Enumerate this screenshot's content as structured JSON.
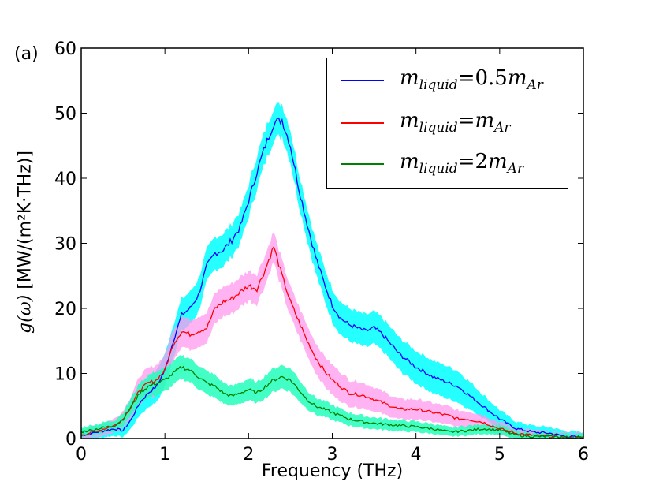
{
  "panel_label": "(a)",
  "legend": {
    "entries": [
      {
        "prefix": "m",
        "sub": "liquid",
        "eq": "=0.5",
        "post": "m",
        "post_sub": "Ar"
      },
      {
        "prefix": "m",
        "sub": "liquid",
        "eq": "=",
        "post": "m",
        "post_sub": "Ar"
      },
      {
        "prefix": "m",
        "sub": "liquid",
        "eq": "=2",
        "post": "m",
        "post_sub": "Ar"
      }
    ]
  },
  "chart_data": {
    "type": "line",
    "title": "",
    "xlabel": "Frequency (THz)",
    "ylabel_math": "g(ω)",
    "ylabel_units": "[MW/(m²K·THz)]",
    "xlim": [
      0,
      6
    ],
    "ylim": [
      0,
      60
    ],
    "x_ticks": [
      0,
      1,
      2,
      3,
      4,
      5,
      6
    ],
    "y_ticks": [
      0,
      10,
      20,
      30,
      40,
      50,
      60
    ],
    "legend_position": "top-right",
    "grid": false,
    "series": [
      {
        "name": "m_liquid=0.5m_Ar",
        "color": "#0000ff",
        "band_color": "#00ffff",
        "band_halfwidth": 2.5,
        "x": [
          0,
          0.2,
          0.4,
          0.5,
          0.6,
          0.7,
          0.8,
          0.9,
          1.0,
          1.1,
          1.2,
          1.3,
          1.4,
          1.5,
          1.6,
          1.7,
          1.8,
          1.9,
          2.0,
          2.1,
          2.2,
          2.3,
          2.4,
          2.5,
          2.6,
          2.7,
          2.8,
          2.9,
          3.0,
          3.1,
          3.2,
          3.3,
          3.4,
          3.5,
          3.6,
          3.7,
          3.8,
          3.9,
          4.0,
          4.2,
          4.4,
          4.5,
          4.6,
          4.8,
          5.0,
          5.2,
          5.4,
          5.6,
          5.8,
          6.0
        ],
        "values": [
          0.5,
          1.0,
          1.5,
          1.2,
          3.0,
          5.5,
          7.0,
          8.0,
          10.5,
          15.0,
          19.0,
          20.0,
          22.0,
          26.5,
          28.5,
          29.0,
          30.5,
          32.5,
          36.5,
          41.0,
          45.0,
          48.5,
          49.0,
          45.0,
          38.5,
          33.0,
          28.0,
          24.0,
          20.5,
          18.5,
          17.5,
          17.0,
          16.5,
          17.0,
          16.0,
          14.5,
          13.0,
          12.0,
          11.0,
          9.5,
          8.5,
          8.0,
          7.0,
          5.0,
          3.0,
          1.5,
          1.0,
          0.8,
          0.3,
          0.2
        ]
      },
      {
        "name": "m_liquid=m_Ar",
        "color": "#ff0000",
        "band_color": "#ff99ee",
        "band_halfwidth": 2.3,
        "x": [
          0,
          0.2,
          0.4,
          0.5,
          0.6,
          0.7,
          0.8,
          0.9,
          1.0,
          1.1,
          1.2,
          1.3,
          1.4,
          1.5,
          1.6,
          1.7,
          1.8,
          1.9,
          2.0,
          2.1,
          2.2,
          2.3,
          2.4,
          2.5,
          2.6,
          2.7,
          2.8,
          2.9,
          3.0,
          3.1,
          3.2,
          3.3,
          3.4,
          3.5,
          3.6,
          3.8,
          4.0,
          4.2,
          4.4,
          4.5,
          4.6,
          4.8,
          5.0,
          5.2,
          5.4,
          5.6,
          5.8,
          6.0
        ],
        "values": [
          0.5,
          1.2,
          2.0,
          3.0,
          5.0,
          7.5,
          8.5,
          9.0,
          10.5,
          14.5,
          16.5,
          16.0,
          16.5,
          17.0,
          20.0,
          21.0,
          21.5,
          22.5,
          23.5,
          23.0,
          26.0,
          29.5,
          25.0,
          21.0,
          18.0,
          15.0,
          12.5,
          10.5,
          9.0,
          8.0,
          7.0,
          6.8,
          6.5,
          6.0,
          5.5,
          4.5,
          4.5,
          4.0,
          3.5,
          3.0,
          3.0,
          2.5,
          1.5,
          0.8,
          0.5,
          0.3,
          0.2,
          0.1
        ]
      },
      {
        "name": "m_liquid=2m_Ar",
        "color": "#008000",
        "band_color": "#22ffbb",
        "band_halfwidth": 1.8,
        "x": [
          0,
          0.2,
          0.4,
          0.5,
          0.6,
          0.7,
          0.8,
          0.9,
          1.0,
          1.1,
          1.2,
          1.3,
          1.4,
          1.5,
          1.6,
          1.7,
          1.8,
          1.9,
          2.0,
          2.1,
          2.2,
          2.3,
          2.4,
          2.5,
          2.6,
          2.7,
          2.8,
          2.9,
          3.0,
          3.2,
          3.4,
          3.6,
          3.8,
          4.0,
          4.2,
          4.4,
          4.6,
          4.8,
          5.0,
          5.2,
          5.4,
          5.6,
          5.8,
          6.0
        ],
        "values": [
          1.0,
          1.5,
          2.0,
          3.0,
          5.0,
          7.0,
          8.0,
          8.5,
          9.0,
          10.0,
          11.0,
          10.5,
          9.5,
          8.5,
          8.0,
          7.0,
          6.5,
          7.0,
          7.5,
          7.0,
          8.0,
          9.0,
          9.5,
          9.0,
          7.5,
          6.0,
          5.0,
          4.5,
          4.0,
          3.0,
          2.5,
          2.2,
          2.0,
          1.8,
          1.5,
          1.0,
          1.2,
          1.5,
          1.3,
          0.5,
          0.3,
          0.3,
          0.2,
          0.1
        ]
      }
    ]
  }
}
